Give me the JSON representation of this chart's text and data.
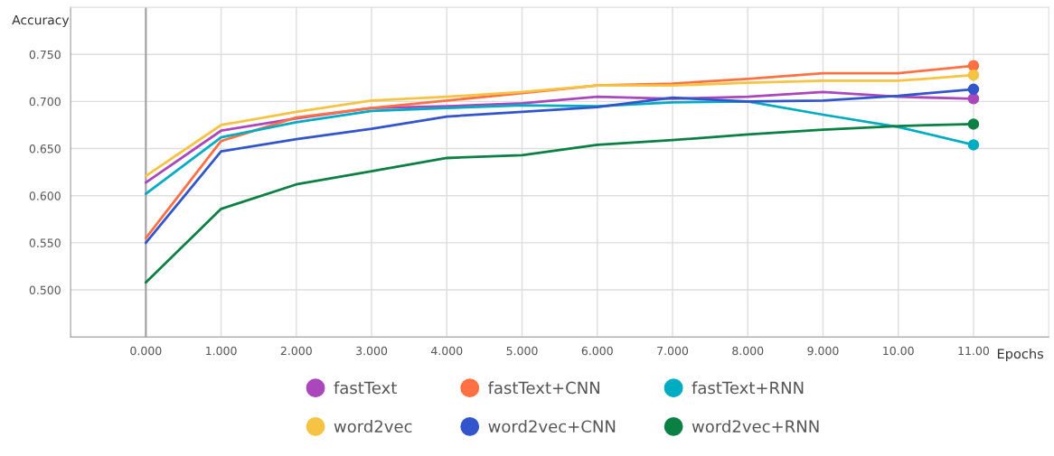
{
  "chart_data": {
    "type": "line",
    "xlabel": "Epochs",
    "ylabel": "Accuracy",
    "x": [
      0,
      1,
      2,
      3,
      4,
      5,
      6,
      7,
      8,
      9,
      10,
      11
    ],
    "xlim": [
      -1,
      12
    ],
    "xticks": [
      {
        "value": 0,
        "label": "0.000"
      },
      {
        "value": 1,
        "label": "1.000"
      },
      {
        "value": 2,
        "label": "2.000"
      },
      {
        "value": 3,
        "label": "3.000"
      },
      {
        "value": 4,
        "label": "4.000"
      },
      {
        "value": 5,
        "label": "5.000"
      },
      {
        "value": 6,
        "label": "6.000"
      },
      {
        "value": 7,
        "label": "7.000"
      },
      {
        "value": 8,
        "label": "8.000"
      },
      {
        "value": 9,
        "label": "9.000"
      },
      {
        "value": 10,
        "label": "10.00"
      },
      {
        "value": 11,
        "label": "11.00"
      }
    ],
    "ylim": [
      0.45,
      0.8
    ],
    "yticks": [
      {
        "value": 0.45,
        "label": null
      },
      {
        "value": 0.5,
        "label": "0.500"
      },
      {
        "value": 0.55,
        "label": "0.550"
      },
      {
        "value": 0.6,
        "label": "0.600"
      },
      {
        "value": 0.65,
        "label": "0.650"
      },
      {
        "value": 0.7,
        "label": "0.700"
      },
      {
        "value": 0.75,
        "label": "0.750"
      }
    ],
    "grid": true,
    "legend": "bottom",
    "line_style": "solid",
    "ref_lines": [
      {
        "axis": "x",
        "value": 0,
        "color": "#a0a0a0"
      }
    ],
    "series": [
      {
        "name": "fastText",
        "color": "#ab47bc",
        "values": [
          0.614,
          0.669,
          0.682,
          0.693,
          0.695,
          0.698,
          0.705,
          0.703,
          0.705,
          0.71,
          0.705,
          0.703
        ]
      },
      {
        "name": "fastText+CNN",
        "color": "#ff7043",
        "values": [
          0.555,
          0.658,
          0.683,
          0.693,
          0.701,
          0.709,
          0.717,
          0.719,
          0.724,
          0.73,
          0.73,
          0.738
        ]
      },
      {
        "name": "fastText+RNN",
        "color": "#00acc1",
        "values": [
          0.602,
          0.662,
          0.678,
          0.69,
          0.693,
          0.696,
          0.695,
          0.699,
          0.7,
          0.686,
          0.673,
          0.654
        ]
      },
      {
        "name": "word2vec",
        "color": "#f6c342",
        "values": [
          0.621,
          0.675,
          0.689,
          0.701,
          0.705,
          0.71,
          0.717,
          0.717,
          0.72,
          0.722,
          0.722,
          0.728
        ]
      },
      {
        "name": "word2vec+CNN",
        "color": "#3355cc",
        "values": [
          0.55,
          0.647,
          0.66,
          0.671,
          0.684,
          0.689,
          0.694,
          0.704,
          0.7,
          0.701,
          0.706,
          0.713
        ]
      },
      {
        "name": "word2vec+RNN",
        "color": "#0b8043",
        "values": [
          0.508,
          0.586,
          0.612,
          0.626,
          0.64,
          0.643,
          0.654,
          0.659,
          0.665,
          0.67,
          0.674,
          0.676
        ]
      },
      {
        "type": "scatter",
        "marker": "circle",
        "color": "#ab47bc",
        "values": [
          null,
          null,
          null,
          null,
          null,
          null,
          null,
          null,
          null,
          null,
          null,
          0.703
        ]
      },
      {
        "type": "scatter",
        "marker": "circle",
        "color": "#ff7043",
        "values": [
          null,
          null,
          null,
          null,
          null,
          null,
          null,
          null,
          null,
          null,
          null,
          0.738
        ]
      },
      {
        "type": "scatter",
        "marker": "circle",
        "color": "#00acc1",
        "values": [
          null,
          null,
          null,
          null,
          null,
          null,
          null,
          null,
          null,
          null,
          null,
          0.654
        ]
      },
      {
        "type": "scatter",
        "marker": "circle",
        "color": "#f6c342",
        "values": [
          null,
          null,
          null,
          null,
          null,
          null,
          null,
          null,
          null,
          null,
          null,
          0.728
        ]
      },
      {
        "type": "scatter",
        "marker": "circle",
        "color": "#3355cc",
        "values": [
          null,
          null,
          null,
          null,
          null,
          null,
          null,
          null,
          null,
          null,
          null,
          0.713
        ]
      },
      {
        "type": "scatter",
        "marker": "circle",
        "color": "#0b8043",
        "values": [
          null,
          null,
          null,
          null,
          null,
          null,
          null,
          null,
          null,
          null,
          null,
          0.676
        ]
      }
    ]
  }
}
